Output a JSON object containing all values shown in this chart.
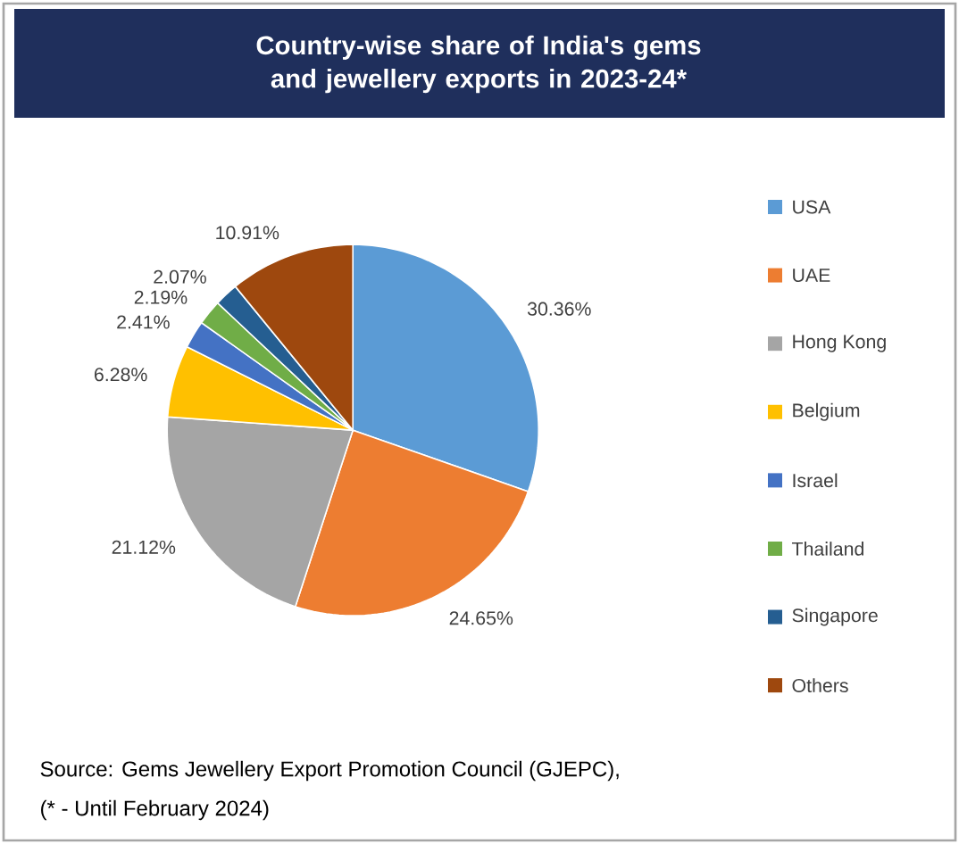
{
  "chart_data": {
    "type": "pie",
    "title": "Country-wise share of India's gems and jewellery exports in 2023-24*",
    "categories": [
      "USA",
      "UAE",
      "Hong Kong",
      "Belgium",
      "Israel",
      "Thailand",
      "Singapore",
      "Others"
    ],
    "values": [
      30.36,
      24.65,
      21.12,
      6.28,
      2.41,
      2.19,
      2.07,
      10.91
    ],
    "colors": [
      "#5b9bd5",
      "#ed7d31",
      "#a5a5a5",
      "#ffc000",
      "#4472c4",
      "#70ad47",
      "#255e91",
      "#9e480e"
    ],
    "value_labels": [
      "30.36%",
      "24.65%",
      "21.12%",
      "6.28%",
      "2.41%",
      "2.19%",
      "2.07%",
      "10.91%"
    ],
    "legend": "right",
    "annotations": [
      "Source: Gems Jewellery Export Promotion Council (GJEPC),",
      "(* - Until February 2024)"
    ]
  }
}
